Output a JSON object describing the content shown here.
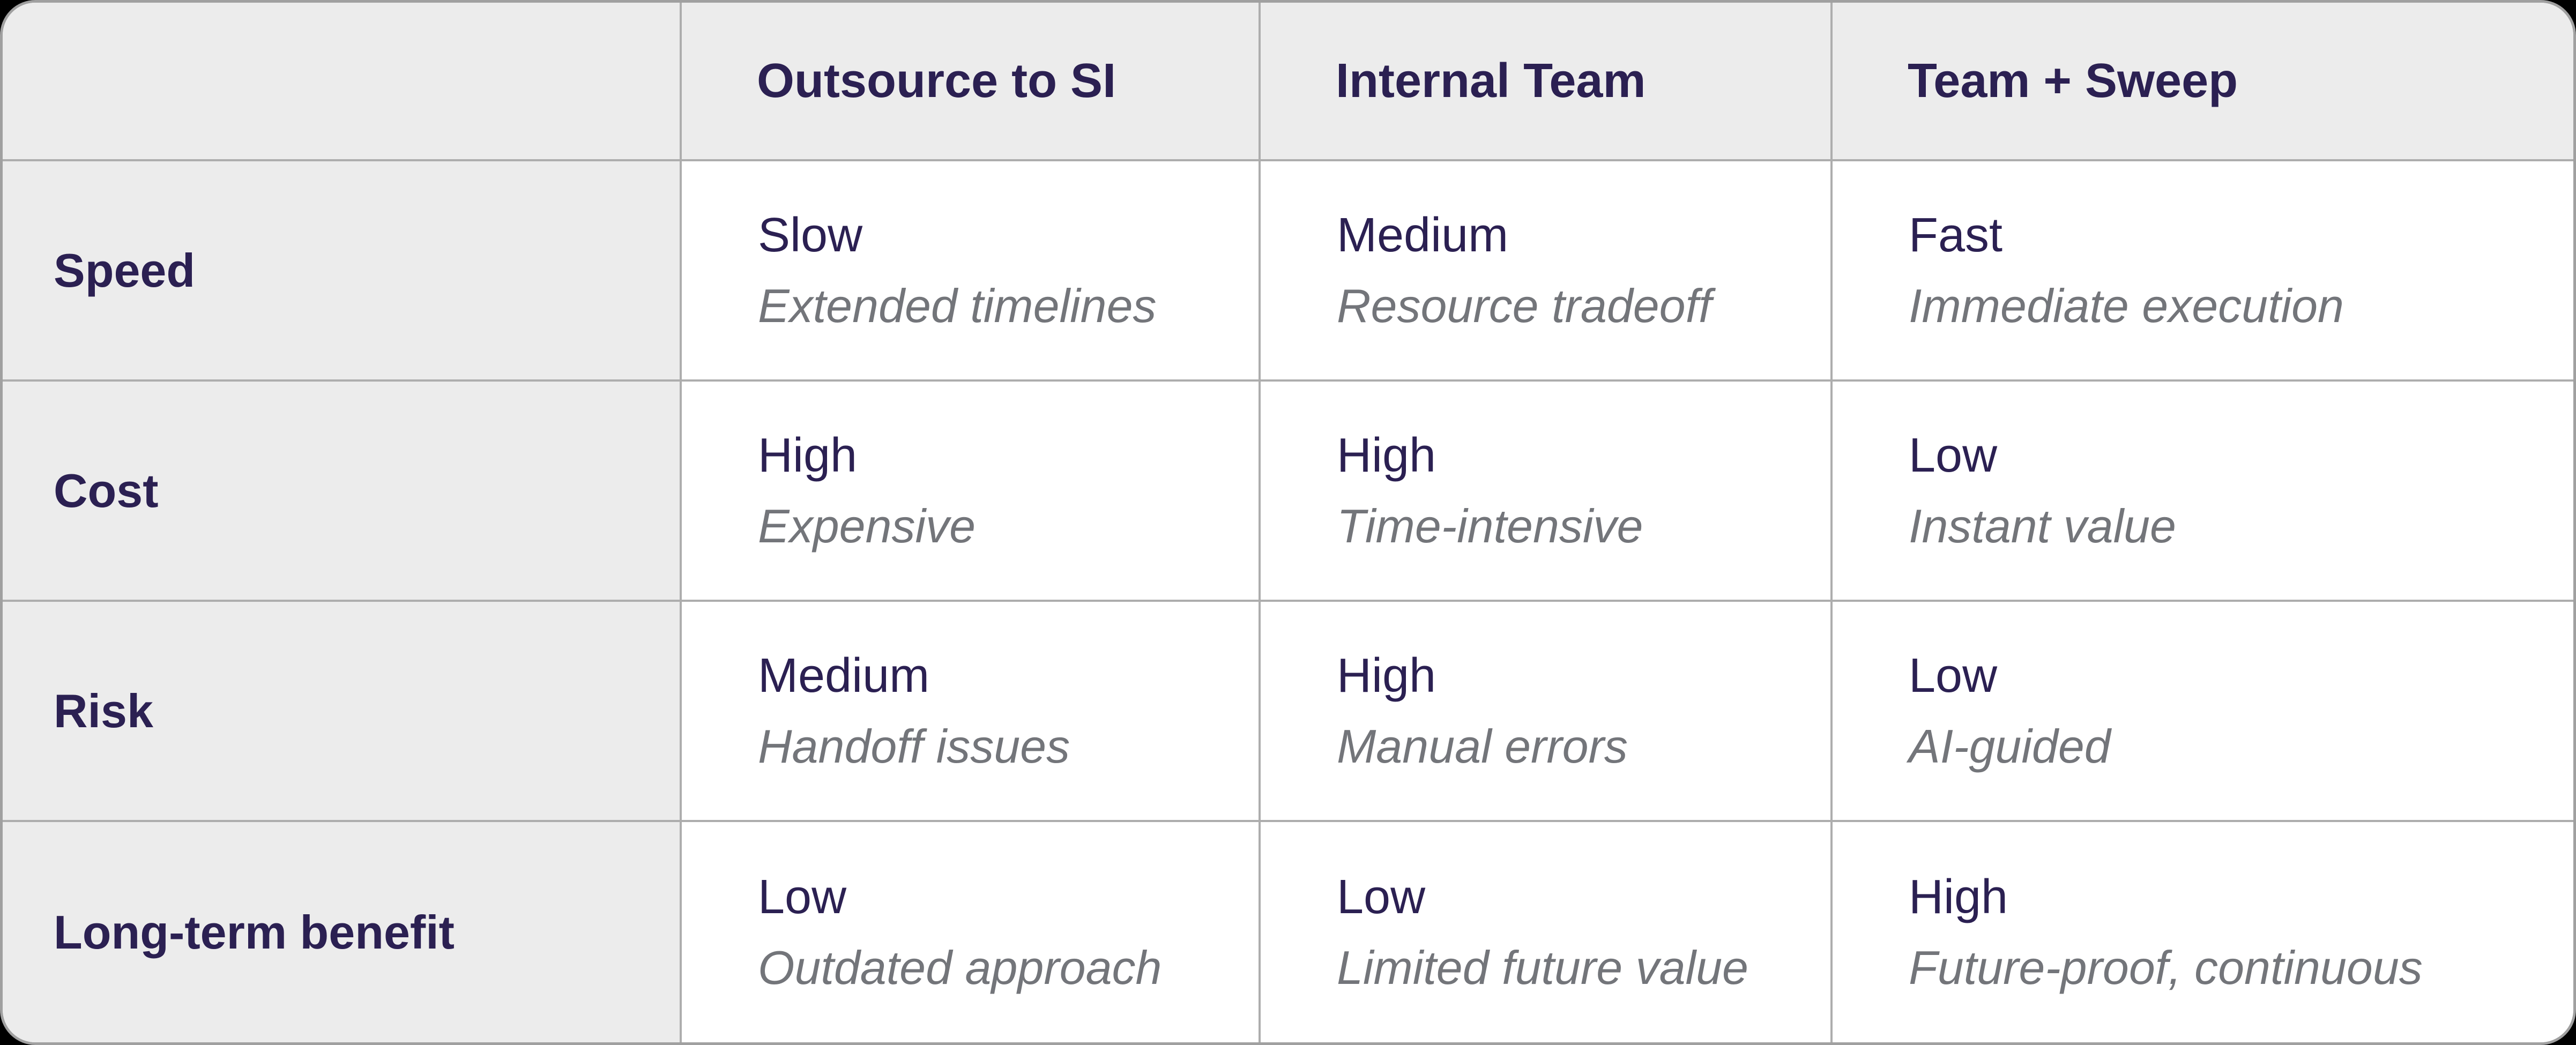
{
  "colors": {
    "page_bg": "#000000",
    "header_bg": "#ececec",
    "cell_bg": "#ffffff",
    "border_color": "#adadad",
    "outer_border": "#a0a0a0",
    "header_text": "#2b2052",
    "value_text": "#2b2052",
    "note_text": "#73757a"
  },
  "chart_data": {
    "type": "table",
    "title": "",
    "columns": [
      "",
      "Outsource to SI",
      "Internal Team",
      "Team + Sweep"
    ],
    "rows": [
      {
        "label": "Speed",
        "cells": [
          {
            "value": "Slow",
            "note": "Extended timelines"
          },
          {
            "value": "Medium",
            "note": "Resource tradeoff"
          },
          {
            "value": "Fast",
            "note": "Immediate execution"
          }
        ]
      },
      {
        "label": "Cost",
        "cells": [
          {
            "value": "High",
            "note": "Expensive"
          },
          {
            "value": "High",
            "note": "Time-intensive"
          },
          {
            "value": "Low",
            "note": "Instant value"
          }
        ]
      },
      {
        "label": "Risk",
        "cells": [
          {
            "value": "Medium",
            "note": "Handoff issues"
          },
          {
            "value": "High",
            "note": "Manual errors"
          },
          {
            "value": "Low",
            "note": "AI-guided"
          }
        ]
      },
      {
        "label": "Long-term benefit",
        "cells": [
          {
            "value": "Low",
            "note": "Outdated approach"
          },
          {
            "value": "Low",
            "note": "Limited future value"
          },
          {
            "value": "High",
            "note": "Future-proof, continuous"
          }
        ]
      }
    ]
  }
}
